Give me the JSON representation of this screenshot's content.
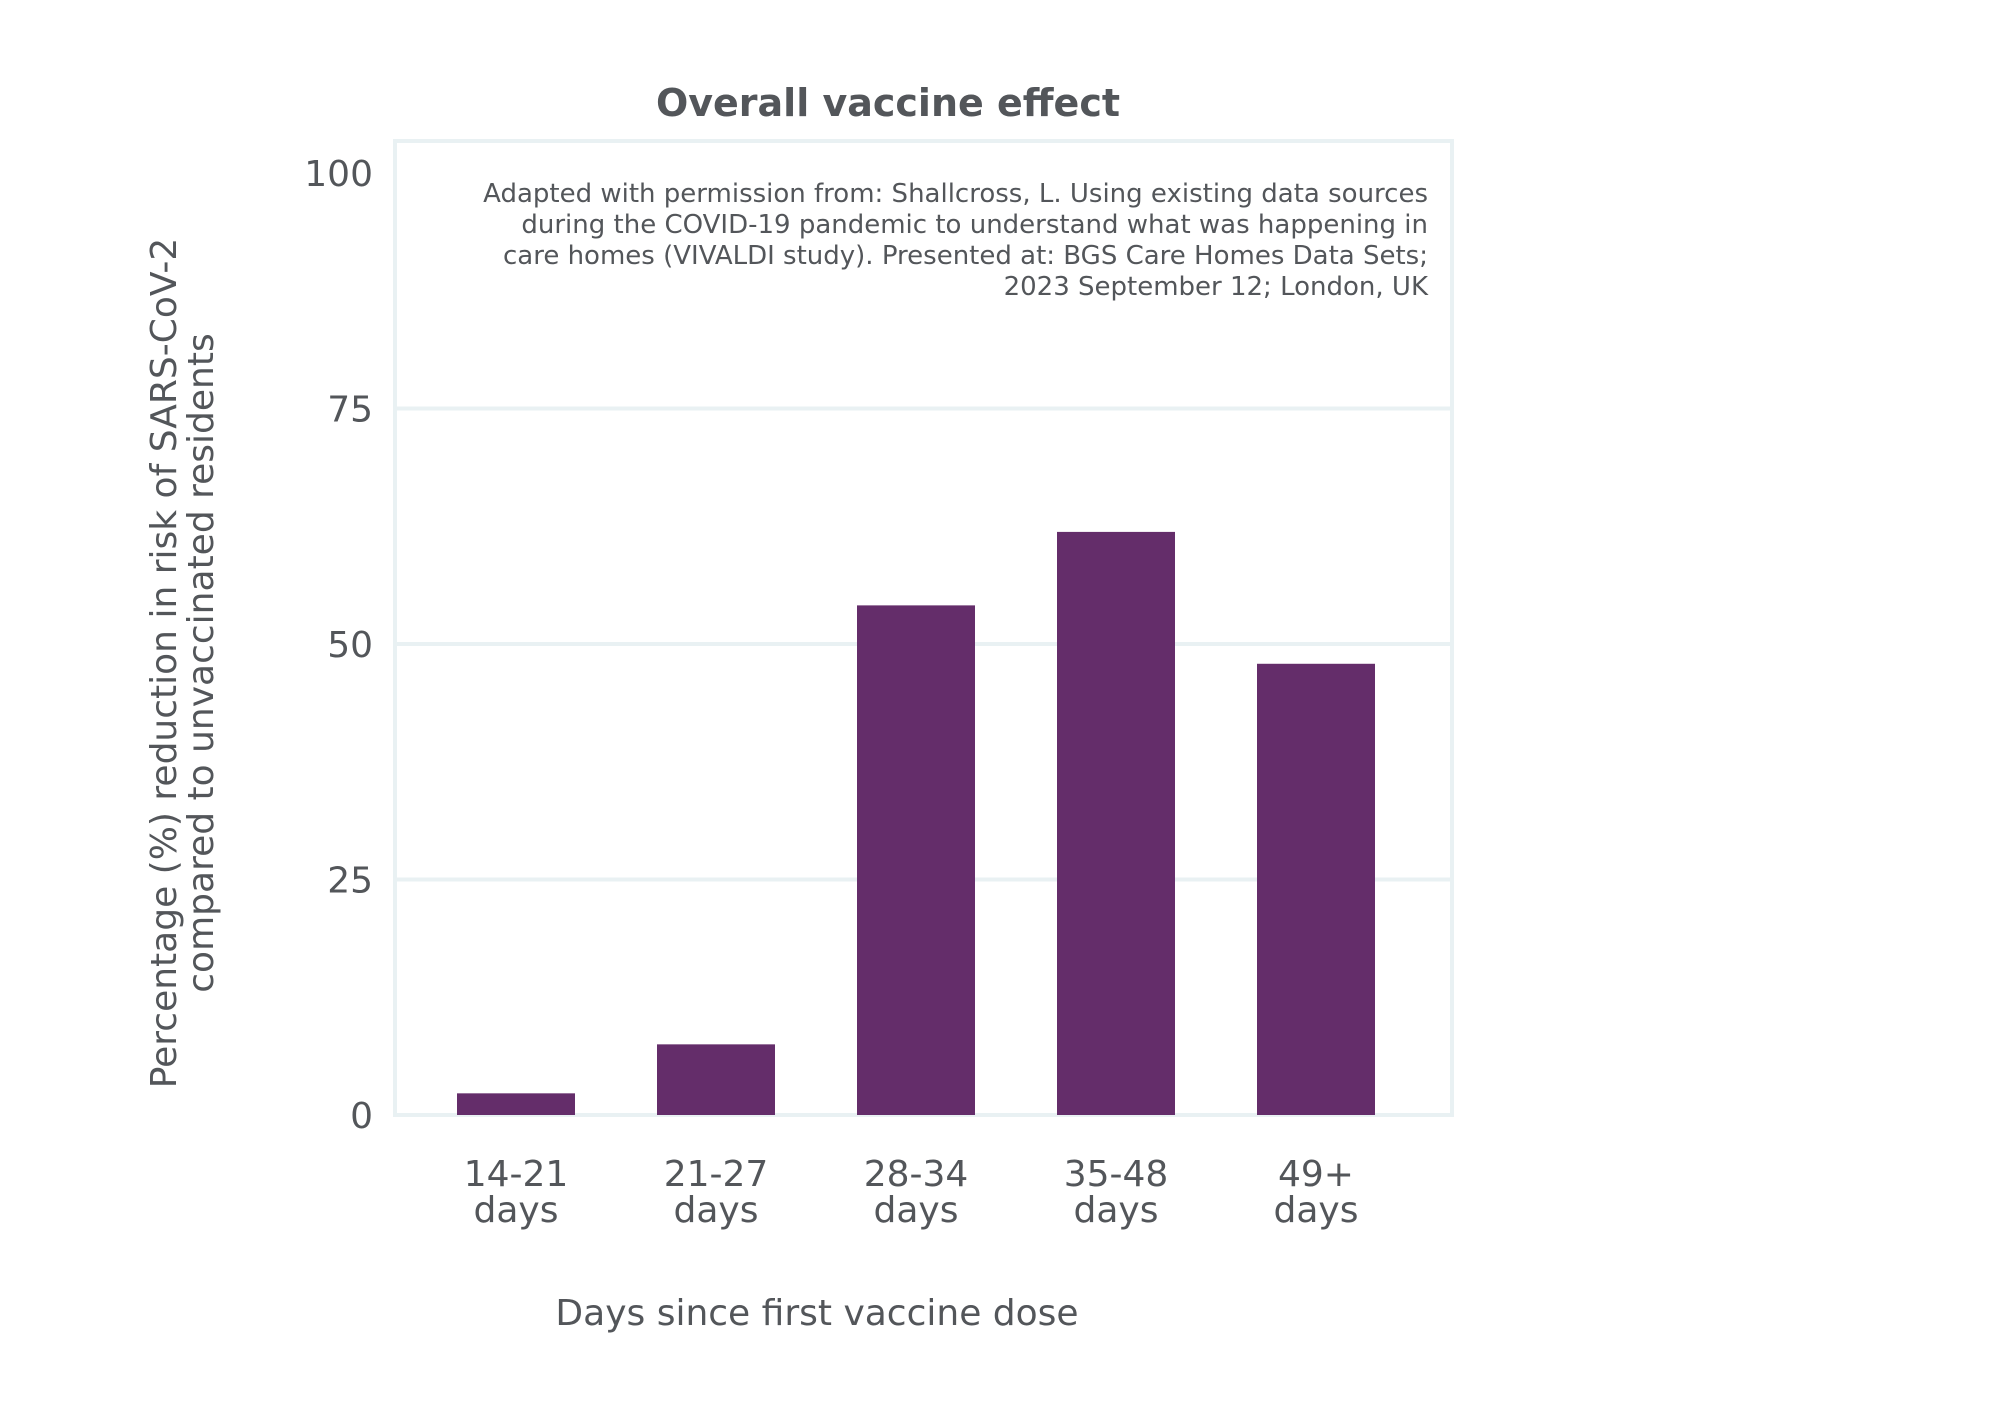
{
  "chart_data": {
    "type": "bar",
    "title": "Overall vaccine effect",
    "categories": [
      [
        "14-21",
        "days"
      ],
      [
        "21-27",
        "days"
      ],
      [
        "28-34",
        "days"
      ],
      [
        "35-48",
        "days"
      ],
      [
        "49+",
        "days"
      ]
    ],
    "values": [
      2.3,
      7.5,
      54.1,
      61.9,
      47.9
    ],
    "xlabel": "Days since first vaccine dose",
    "ylabel": [
      "Percentage (%) reduction in risk of SARS-CoV-2",
      "compared to unvaccinated residents"
    ],
    "ylim": [
      0,
      100
    ],
    "yticks": [
      0,
      25,
      50,
      75,
      100
    ],
    "grid": true,
    "annotation": [
      "Adapted with permission from: Shallcross, L. Using existing data sources",
      "during the COVID-19 pandemic to understand what was happening in",
      "care homes (VIVALDI study). Presented at: BGS Care Homes Data Sets;",
      "2023 September 12; London, UK"
    ],
    "colors": {
      "bar": "#642d6a",
      "grid": "#e9f1f3",
      "text": "#53565a"
    }
  }
}
